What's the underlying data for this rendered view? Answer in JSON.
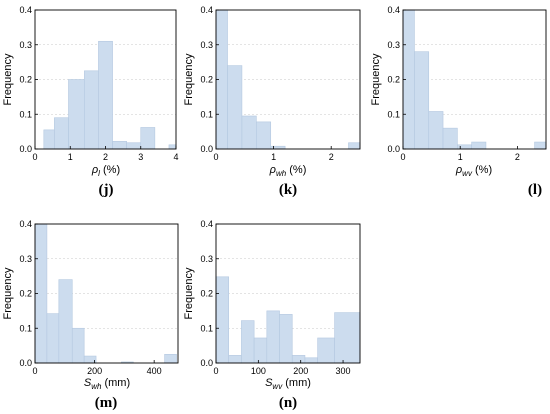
{
  "chart_data": [
    {
      "id": "j",
      "type": "bar",
      "panel_label": "(j)",
      "ylabel": "Frequency",
      "xlabel": {
        "sym": "ρ",
        "sub": "l",
        "unit": " (%)"
      },
      "xlim": [
        0,
        4
      ],
      "ylim": [
        0,
        0.4
      ],
      "xticks": [
        0,
        1,
        2,
        3,
        4
      ],
      "yticks": [
        0.0,
        0.1,
        0.2,
        0.3,
        0.4
      ],
      "bins": [
        {
          "x0": 0.25,
          "x1": 0.55,
          "value": 0.055
        },
        {
          "x0": 0.55,
          "x1": 0.95,
          "value": 0.09
        },
        {
          "x0": 0.95,
          "x1": 1.4,
          "value": 0.2
        },
        {
          "x0": 1.4,
          "x1": 1.8,
          "value": 0.225
        },
        {
          "x0": 1.8,
          "x1": 2.2,
          "value": 0.31
        },
        {
          "x0": 2.2,
          "x1": 2.6,
          "value": 0.022
        },
        {
          "x0": 2.6,
          "x1": 3.0,
          "value": 0.018
        },
        {
          "x0": 3.0,
          "x1": 3.4,
          "value": 0.062
        },
        {
          "x0": 3.8,
          "x1": 4.0,
          "value": 0.012
        }
      ]
    },
    {
      "id": "k",
      "type": "bar",
      "panel_label": "(k)",
      "ylabel": "Frequency",
      "xlabel": {
        "sym": "ρ",
        "sub": "wh",
        "unit": " (%)"
      },
      "xlim": [
        0,
        2.5
      ],
      "ylim": [
        0,
        0.4
      ],
      "xticks": [
        0,
        1,
        2
      ],
      "yticks": [
        0.0,
        0.1,
        0.2,
        0.3,
        0.4
      ],
      "bins": [
        {
          "x0": 0.0,
          "x1": 0.2,
          "value": 0.4
        },
        {
          "x0": 0.2,
          "x1": 0.45,
          "value": 0.24
        },
        {
          "x0": 0.45,
          "x1": 0.7,
          "value": 0.095
        },
        {
          "x0": 0.7,
          "x1": 0.95,
          "value": 0.078
        },
        {
          "x0": 0.95,
          "x1": 1.2,
          "value": 0.008
        },
        {
          "x0": 2.3,
          "x1": 2.5,
          "value": 0.018
        }
      ]
    },
    {
      "id": "l",
      "type": "bar",
      "panel_label": "(l)",
      "ylabel": "Frequency",
      "xlabel": {
        "sym": "ρ",
        "sub": "wv",
        "unit": " (%)"
      },
      "xlim": [
        0,
        2.5
      ],
      "ylim": [
        0,
        0.4
      ],
      "xticks": [
        0,
        1,
        2
      ],
      "yticks": [
        0.0,
        0.1,
        0.2,
        0.3,
        0.4
      ],
      "bins": [
        {
          "x0": 0.0,
          "x1": 0.2,
          "value": 0.4
        },
        {
          "x0": 0.2,
          "x1": 0.45,
          "value": 0.28
        },
        {
          "x0": 0.45,
          "x1": 0.7,
          "value": 0.108
        },
        {
          "x0": 0.7,
          "x1": 0.95,
          "value": 0.06
        },
        {
          "x0": 0.95,
          "x1": 1.2,
          "value": 0.012
        },
        {
          "x0": 1.2,
          "x1": 1.45,
          "value": 0.02
        },
        {
          "x0": 2.3,
          "x1": 2.5,
          "value": 0.02
        }
      ]
    },
    {
      "id": "m",
      "type": "bar",
      "panel_label": "(m)",
      "ylabel": "Frequency",
      "xlabel": {
        "sym": "S",
        "sub": "wh",
        "unit": " (mm)"
      },
      "xlim": [
        0,
        480
      ],
      "ylim": [
        0,
        0.4
      ],
      "xticks": [
        0,
        200,
        400
      ],
      "yticks": [
        0.0,
        0.1,
        0.2,
        0.3,
        0.4
      ],
      "bins": [
        {
          "x0": 0,
          "x1": 40,
          "value": 0.4
        },
        {
          "x0": 40,
          "x1": 80,
          "value": 0.142
        },
        {
          "x0": 80,
          "x1": 125,
          "value": 0.24
        },
        {
          "x0": 125,
          "x1": 165,
          "value": 0.1
        },
        {
          "x0": 165,
          "x1": 205,
          "value": 0.02
        },
        {
          "x0": 290,
          "x1": 330,
          "value": 0.003
        },
        {
          "x0": 435,
          "x1": 475,
          "value": 0.025
        }
      ]
    },
    {
      "id": "n",
      "type": "bar",
      "panel_label": "(n)",
      "ylabel": "Frequency",
      "xlabel": {
        "sym": "S",
        "sub": "wv",
        "unit": " (mm)"
      },
      "xlim": [
        0,
        340
      ],
      "ylim": [
        0,
        0.4
      ],
      "xticks": [
        0,
        100,
        200,
        300
      ],
      "yticks": [
        0.0,
        0.1,
        0.2,
        0.3,
        0.4
      ],
      "bins": [
        {
          "x0": 0,
          "x1": 30,
          "value": 0.248
        },
        {
          "x0": 30,
          "x1": 60,
          "value": 0.022
        },
        {
          "x0": 60,
          "x1": 90,
          "value": 0.122
        },
        {
          "x0": 90,
          "x1": 120,
          "value": 0.072
        },
        {
          "x0": 120,
          "x1": 150,
          "value": 0.15
        },
        {
          "x0": 150,
          "x1": 180,
          "value": 0.14
        },
        {
          "x0": 180,
          "x1": 210,
          "value": 0.022
        },
        {
          "x0": 210,
          "x1": 240,
          "value": 0.015
        },
        {
          "x0": 240,
          "x1": 280,
          "value": 0.072
        },
        {
          "x0": 280,
          "x1": 340,
          "value": 0.145
        }
      ]
    }
  ],
  "colors": {
    "bar_fill": "#ccdcee",
    "bar_edge": "#b4c8e0",
    "grid": "#c8c8c8",
    "axis": "#000000"
  }
}
